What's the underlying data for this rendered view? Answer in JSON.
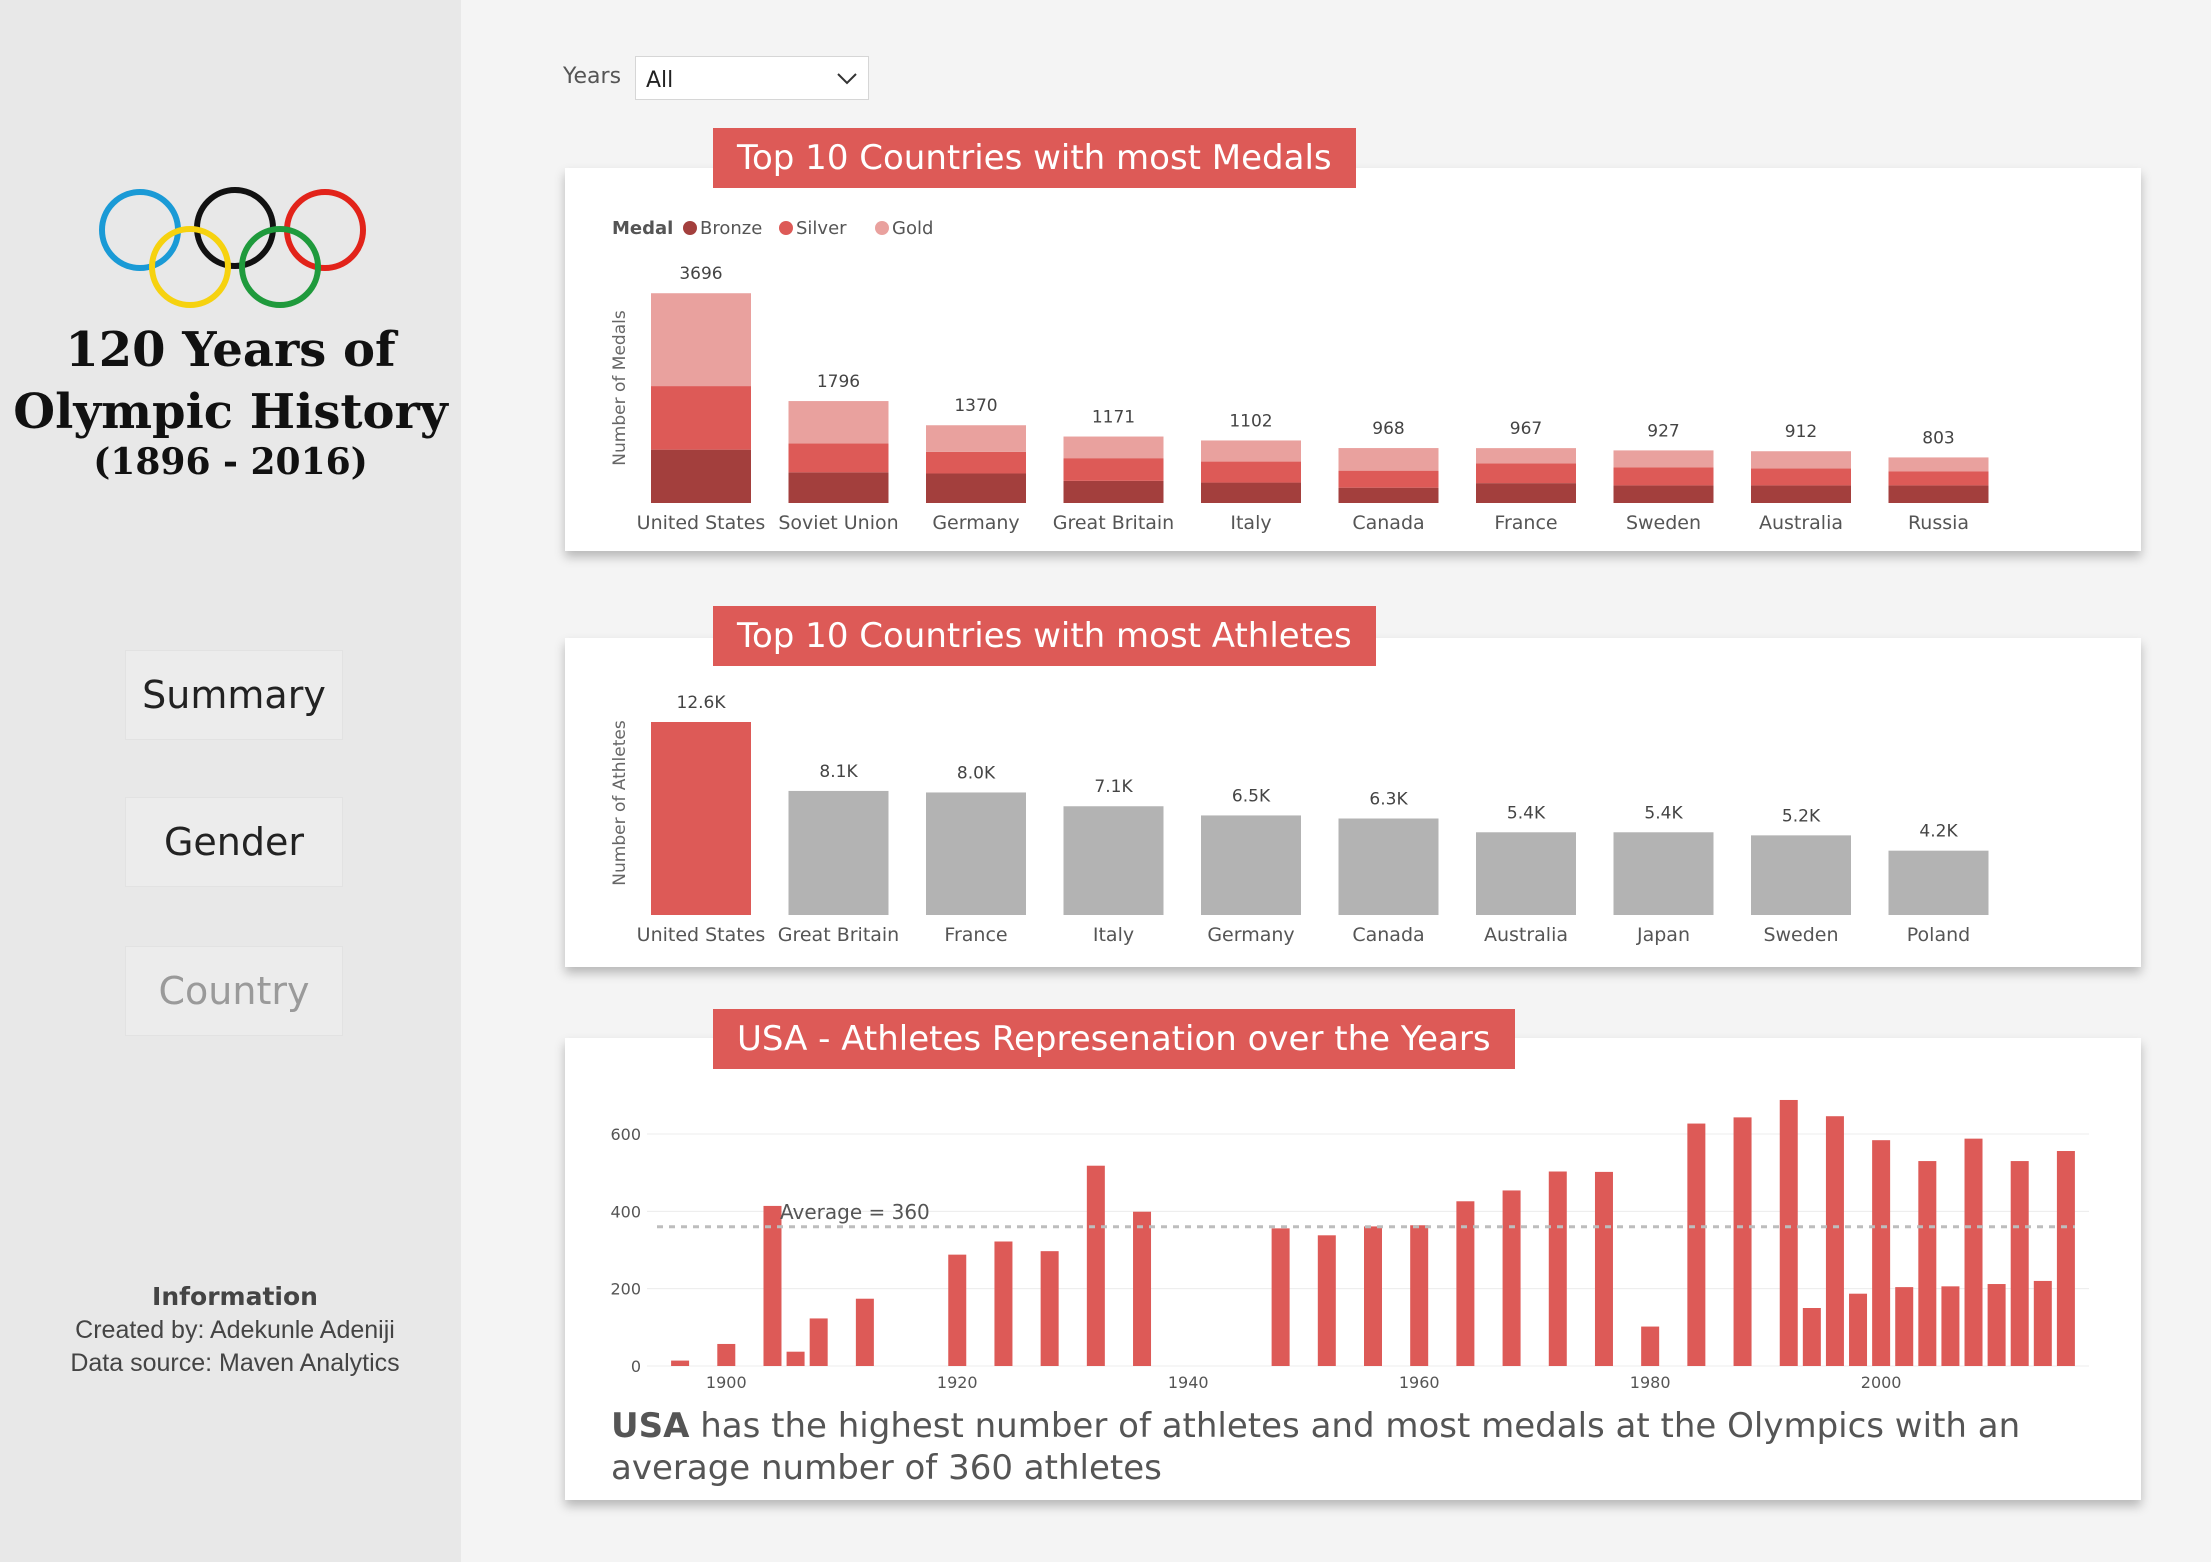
{
  "sidebar": {
    "title_line1": "120 Years of",
    "title_line2": "Olympic History",
    "title_line3": "(1896 - 2016)",
    "nav": [
      {
        "label": "Summary",
        "active": true
      },
      {
        "label": "Gender",
        "active": true
      },
      {
        "label": "Country",
        "active": false
      }
    ],
    "info_heading": "Information",
    "created_by": "Created by: Adekunle Adeniji",
    "data_source": "Data source: Maven Analytics",
    "ring_colors": [
      "#1a9ad6",
      "#111111",
      "#e2231a",
      "#f6d20f",
      "#1f9a3c"
    ]
  },
  "filter": {
    "label": "Years",
    "value": "All"
  },
  "colors": {
    "accent": "#dd5a57",
    "bronze": "#a33f3d",
    "silver": "#dd5a57",
    "gold": "#e9a19e",
    "grey_bar": "#b3b3b3"
  },
  "insight": {
    "bold": "USA",
    "text": " has the highest number of athletes and most medals at the Olympics with an average number of 360 athletes"
  },
  "chart_data": [
    {
      "type": "bar",
      "stacked": true,
      "title": "Top 10 Countries with most Medals",
      "ylabel": "Number of Medals",
      "legend_title": "Medal",
      "legend_position": "top-left",
      "categories": [
        "United States",
        "Soviet Union",
        "Germany",
        "Great Britain",
        "Italy",
        "Canada",
        "France",
        "Sweden",
        "Australia",
        "Russia"
      ],
      "totals": [
        3696,
        1796,
        1370,
        1171,
        1102,
        968,
        967,
        927,
        912,
        803
      ],
      "series": [
        {
          "name": "Bronze",
          "values": [
            940,
            540,
            520,
            390,
            360,
            270,
            350,
            310,
            310,
            310
          ]
        },
        {
          "name": "Silver",
          "values": [
            1120,
            510,
            380,
            400,
            370,
            300,
            350,
            320,
            300,
            250
          ]
        },
        {
          "name": "Gold",
          "values": [
            1636,
            746,
            470,
            381,
            372,
            398,
            267,
            297,
            302,
            243
          ]
        }
      ],
      "ylim": [
        0,
        3700
      ]
    },
    {
      "type": "bar",
      "title": "Top 10 Countries with most Athletes",
      "ylabel": "Number of Athletes",
      "categories": [
        "United States",
        "Great Britain",
        "France",
        "Italy",
        "Germany",
        "Canada",
        "Australia",
        "Japan",
        "Sweden",
        "Poland"
      ],
      "values": [
        12600,
        8100,
        8000,
        7100,
        6500,
        6300,
        5400,
        5400,
        5200,
        4200
      ],
      "labels": [
        "12.6K",
        "8.1K",
        "8.0K",
        "7.1K",
        "6.5K",
        "6.3K",
        "5.4K",
        "5.4K",
        "5.2K",
        "4.2K"
      ],
      "highlight_index": 0,
      "ylim": [
        0,
        12600
      ]
    },
    {
      "type": "bar",
      "title": "USA - Athletes Represenation over the Years",
      "x": [
        1896,
        1900,
        1904,
        1906,
        1908,
        1912,
        1920,
        1924,
        1928,
        1932,
        1936,
        1948,
        1952,
        1956,
        1960,
        1964,
        1968,
        1972,
        1976,
        1980,
        1984,
        1988,
        1992,
        1994,
        1996,
        1998,
        2000,
        2002,
        2004,
        2006,
        2008,
        2010,
        2012,
        2014,
        2016
      ],
      "values": [
        14,
        57,
        414,
        37,
        123,
        174,
        288,
        322,
        297,
        518,
        399,
        356,
        338,
        361,
        364,
        426,
        454,
        503,
        502,
        102,
        627,
        643,
        688,
        150,
        646,
        187,
        584,
        204,
        530,
        206,
        588,
        212,
        530,
        220,
        556
      ],
      "xticks": [
        1900,
        1920,
        1940,
        1960,
        1980,
        2000
      ],
      "yticks": [
        0,
        200,
        400,
        600
      ],
      "ylim": [
        0,
        600
      ],
      "xlim": [
        1894,
        2018
      ],
      "reference_line": {
        "label": "Average = 360",
        "value": 360
      },
      "grid": true
    }
  ]
}
